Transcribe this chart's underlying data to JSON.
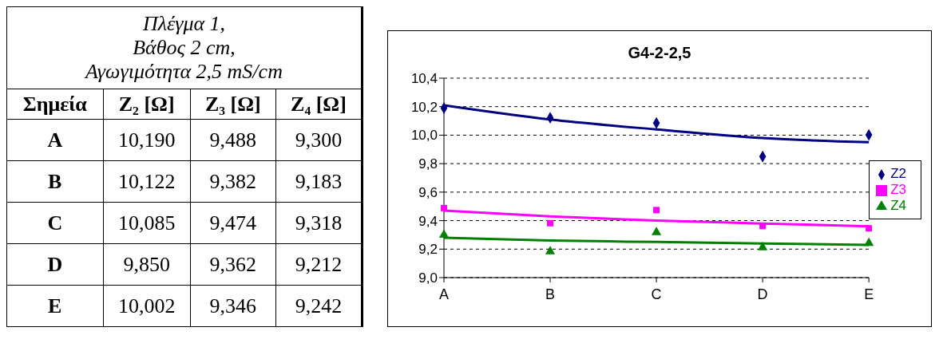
{
  "chart_data": {
    "type": "scatter",
    "title": "G4-2-2,5",
    "categories": [
      "A",
      "B",
      "C",
      "D",
      "E"
    ],
    "series": [
      {
        "name": "Z2",
        "marker": "diamond",
        "color": "#000080",
        "values": [
          10.19,
          10.122,
          10.085,
          9.85,
          10.002
        ]
      },
      {
        "name": "Z3",
        "marker": "square",
        "color": "#ff00ff",
        "values": [
          9.488,
          9.382,
          9.474,
          9.362,
          9.346
        ]
      },
      {
        "name": "Z4",
        "marker": "triangle",
        "color": "#008000",
        "values": [
          9.3,
          9.183,
          9.318,
          9.212,
          9.242
        ]
      },
      {
        "type": "line",
        "marker": "none",
        "color": "#000080",
        "values": [
          10.21,
          10.11,
          10.04,
          9.98,
          9.95
        ]
      },
      {
        "type": "line",
        "marker": "none",
        "color": "#ff00ff",
        "values": [
          9.47,
          9.43,
          9.4,
          9.38,
          9.36
        ]
      },
      {
        "type": "line",
        "marker": "none",
        "color": "#008000",
        "values": [
          9.28,
          9.26,
          9.25,
          9.24,
          9.23
        ]
      }
    ],
    "ylim": [
      9.0,
      10.4
    ],
    "yticks": [
      {
        "value": 9.0,
        "label": "9,0"
      },
      {
        "value": 9.2,
        "label": "9,2"
      },
      {
        "value": 9.4,
        "label": "9,4"
      },
      {
        "value": 9.6,
        "label": "9,6"
      },
      {
        "value": 9.8,
        "label": "9,8"
      },
      {
        "value": 10.0,
        "label": "10,0"
      },
      {
        "value": 10.2,
        "label": "10,2"
      },
      {
        "value": 10.4,
        "label": "10,4"
      }
    ],
    "grid": "y",
    "legend": "right",
    "annotations": [
      "Πλέγμα 1,",
      "Βάθος 2 cm,",
      "Αγωγιμότητα 2,5 mS/cm",
      "Σημεία",
      "Z₂ [Ω]",
      "Z₃ [Ω]",
      "Z₄ [Ω]",
      "10,190",
      "9,488",
      "9,300",
      "10,122",
      "9,382",
      "9,183",
      "10,085",
      "9,474",
      "9,318",
      "9,850",
      "9,362",
      "9,212",
      "10,002",
      "9,346",
      "9,242"
    ]
  }
}
